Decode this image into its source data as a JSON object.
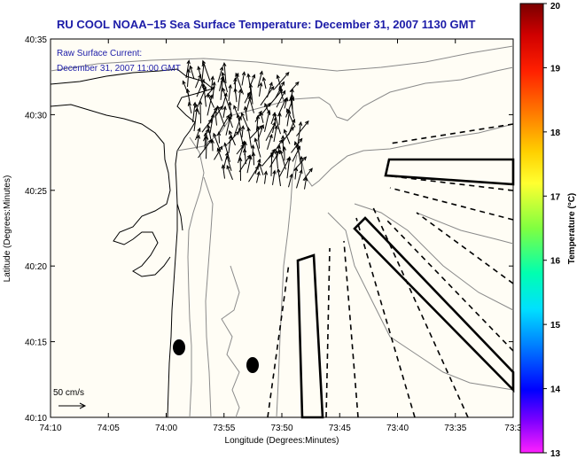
{
  "title": "RU COOL  NOAA−15  Sea Surface Temperature:  December 31, 2007 1130 GMT",
  "current_label": {
    "line1": "Raw Surface Current:",
    "line2": "December 31, 2007 11:00 GMT"
  },
  "axes": {
    "xlabel": "Longitude (Degrees:Minutes)",
    "ylabel": "Latitude (Degrees:Minutes)",
    "x_ticks": [
      "74:10",
      "74:05",
      "74:00",
      "73:55",
      "73:50",
      "73:45",
      "73:40",
      "73:35",
      "73:3"
    ],
    "y_ticks": [
      "40:35",
      "40:30",
      "40:25",
      "40:20",
      "40:15",
      "40:10"
    ]
  },
  "scale": {
    "label": "50 cm/s"
  },
  "colorbar": {
    "label": "Temperature (°C)",
    "ticks": [
      "20",
      "19",
      "18",
      "17",
      "16",
      "15",
      "14",
      "13"
    ],
    "colors": [
      "#8b0000",
      "#ff0000",
      "#ff8c00",
      "#ffff00",
      "#7fff00",
      "#00ffff",
      "#0000ff",
      "#ff00ff"
    ]
  }
}
